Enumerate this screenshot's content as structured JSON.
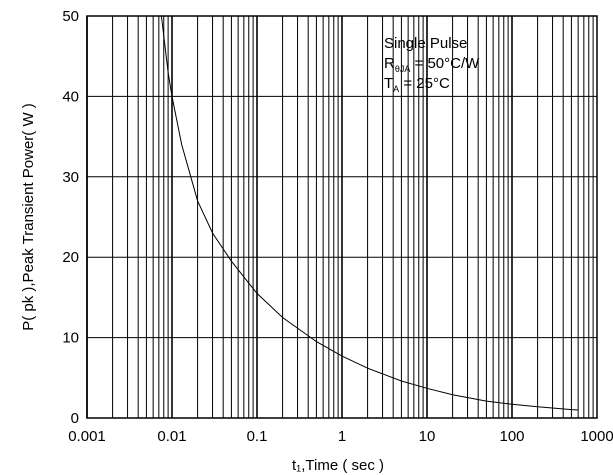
{
  "chart_data": {
    "type": "line",
    "x_scale": "log",
    "x_range": [
      0.001,
      1000
    ],
    "y_range": [
      0,
      50
    ],
    "grid": true,
    "xlabel": "t₁,Time ( sec )",
    "ylabel": "P( pk ),Peak Transient Power( W )",
    "x_ticks": [
      {
        "value": 0.001,
        "label": "0.001"
      },
      {
        "value": 0.01,
        "label": "0.01"
      },
      {
        "value": 0.1,
        "label": "0.1"
      },
      {
        "value": 1,
        "label": "1"
      },
      {
        "value": 10,
        "label": "10"
      },
      {
        "value": 100,
        "label": "100"
      },
      {
        "value": 1000,
        "label": "1000"
      }
    ],
    "y_ticks": [
      {
        "value": 0,
        "label": "0"
      },
      {
        "value": 10,
        "label": "10"
      },
      {
        "value": 20,
        "label": "20"
      },
      {
        "value": 30,
        "label": "30"
      },
      {
        "value": 40,
        "label": "40"
      },
      {
        "value": 50,
        "label": "50"
      }
    ],
    "series": [
      {
        "color": "#000000",
        "points": [
          {
            "x": 0.0075,
            "y": 50
          },
          {
            "x": 0.009,
            "y": 43
          },
          {
            "x": 0.01,
            "y": 40
          },
          {
            "x": 0.013,
            "y": 34
          },
          {
            "x": 0.02,
            "y": 27
          },
          {
            "x": 0.03,
            "y": 23
          },
          {
            "x": 0.05,
            "y": 19.5
          },
          {
            "x": 0.1,
            "y": 15.5
          },
          {
            "x": 0.2,
            "y": 12.5
          },
          {
            "x": 0.5,
            "y": 9.5
          },
          {
            "x": 1,
            "y": 7.7
          },
          {
            "x": 2,
            "y": 6.2
          },
          {
            "x": 5,
            "y": 4.6
          },
          {
            "x": 10,
            "y": 3.7
          },
          {
            "x": 20,
            "y": 2.9
          },
          {
            "x": 50,
            "y": 2.1
          },
          {
            "x": 100,
            "y": 1.7
          },
          {
            "x": 200,
            "y": 1.4
          },
          {
            "x": 500,
            "y": 1.05
          },
          {
            "x": 600,
            "y": 1.0
          }
        ]
      }
    ],
    "annotations": [
      {
        "base": "Single Pulse",
        "sub": "",
        "rest": ""
      },
      {
        "base": "R",
        "sub": "θJA",
        "rest": " = 50°C/W"
      },
      {
        "base": "T",
        "sub": "A",
        "rest": " = 25°C"
      }
    ]
  }
}
